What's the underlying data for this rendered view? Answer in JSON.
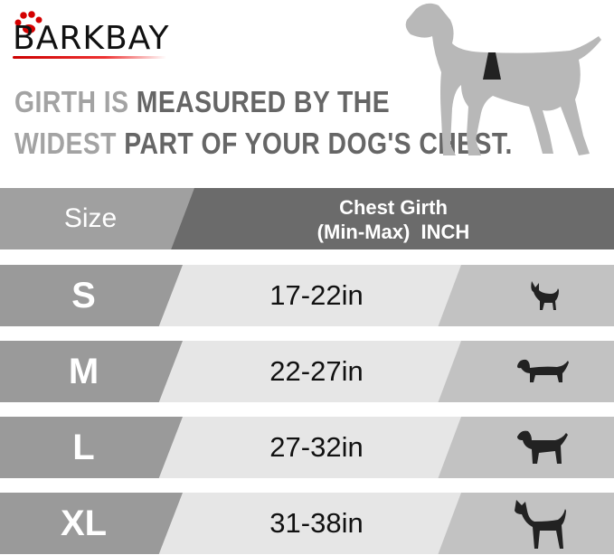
{
  "brand": {
    "logo_text": "BARKBAY",
    "accent": "#d40000"
  },
  "headline": {
    "line1_light": "GIRTH IS",
    "line1_dark": "MEASURED BY THE",
    "line2_light": "WIDEST",
    "line2_dark": "PART OF YOUR DOG'S CHEST."
  },
  "table": {
    "header": {
      "size": "Size",
      "girth_line1": "Chest Girth",
      "girth_line2": "(Min-Max)  INCH"
    },
    "rows": [
      {
        "size": "S",
        "girth": "17-22in",
        "icon": "chihuahua-icon"
      },
      {
        "size": "M",
        "girth": "22-27in",
        "icon": "dachshund-icon"
      },
      {
        "size": "L",
        "girth": "27-32in",
        "icon": "labrador-icon"
      },
      {
        "size": "XL",
        "girth": "31-38in",
        "icon": "great-dane-icon"
      }
    ]
  },
  "colors": {
    "header_left": "#a0a0a0",
    "header_right": "#6b6b6b",
    "row_left": "#9a9a9a",
    "row_mid": "#e6e6e6",
    "row_right": "#c2c2c2"
  }
}
